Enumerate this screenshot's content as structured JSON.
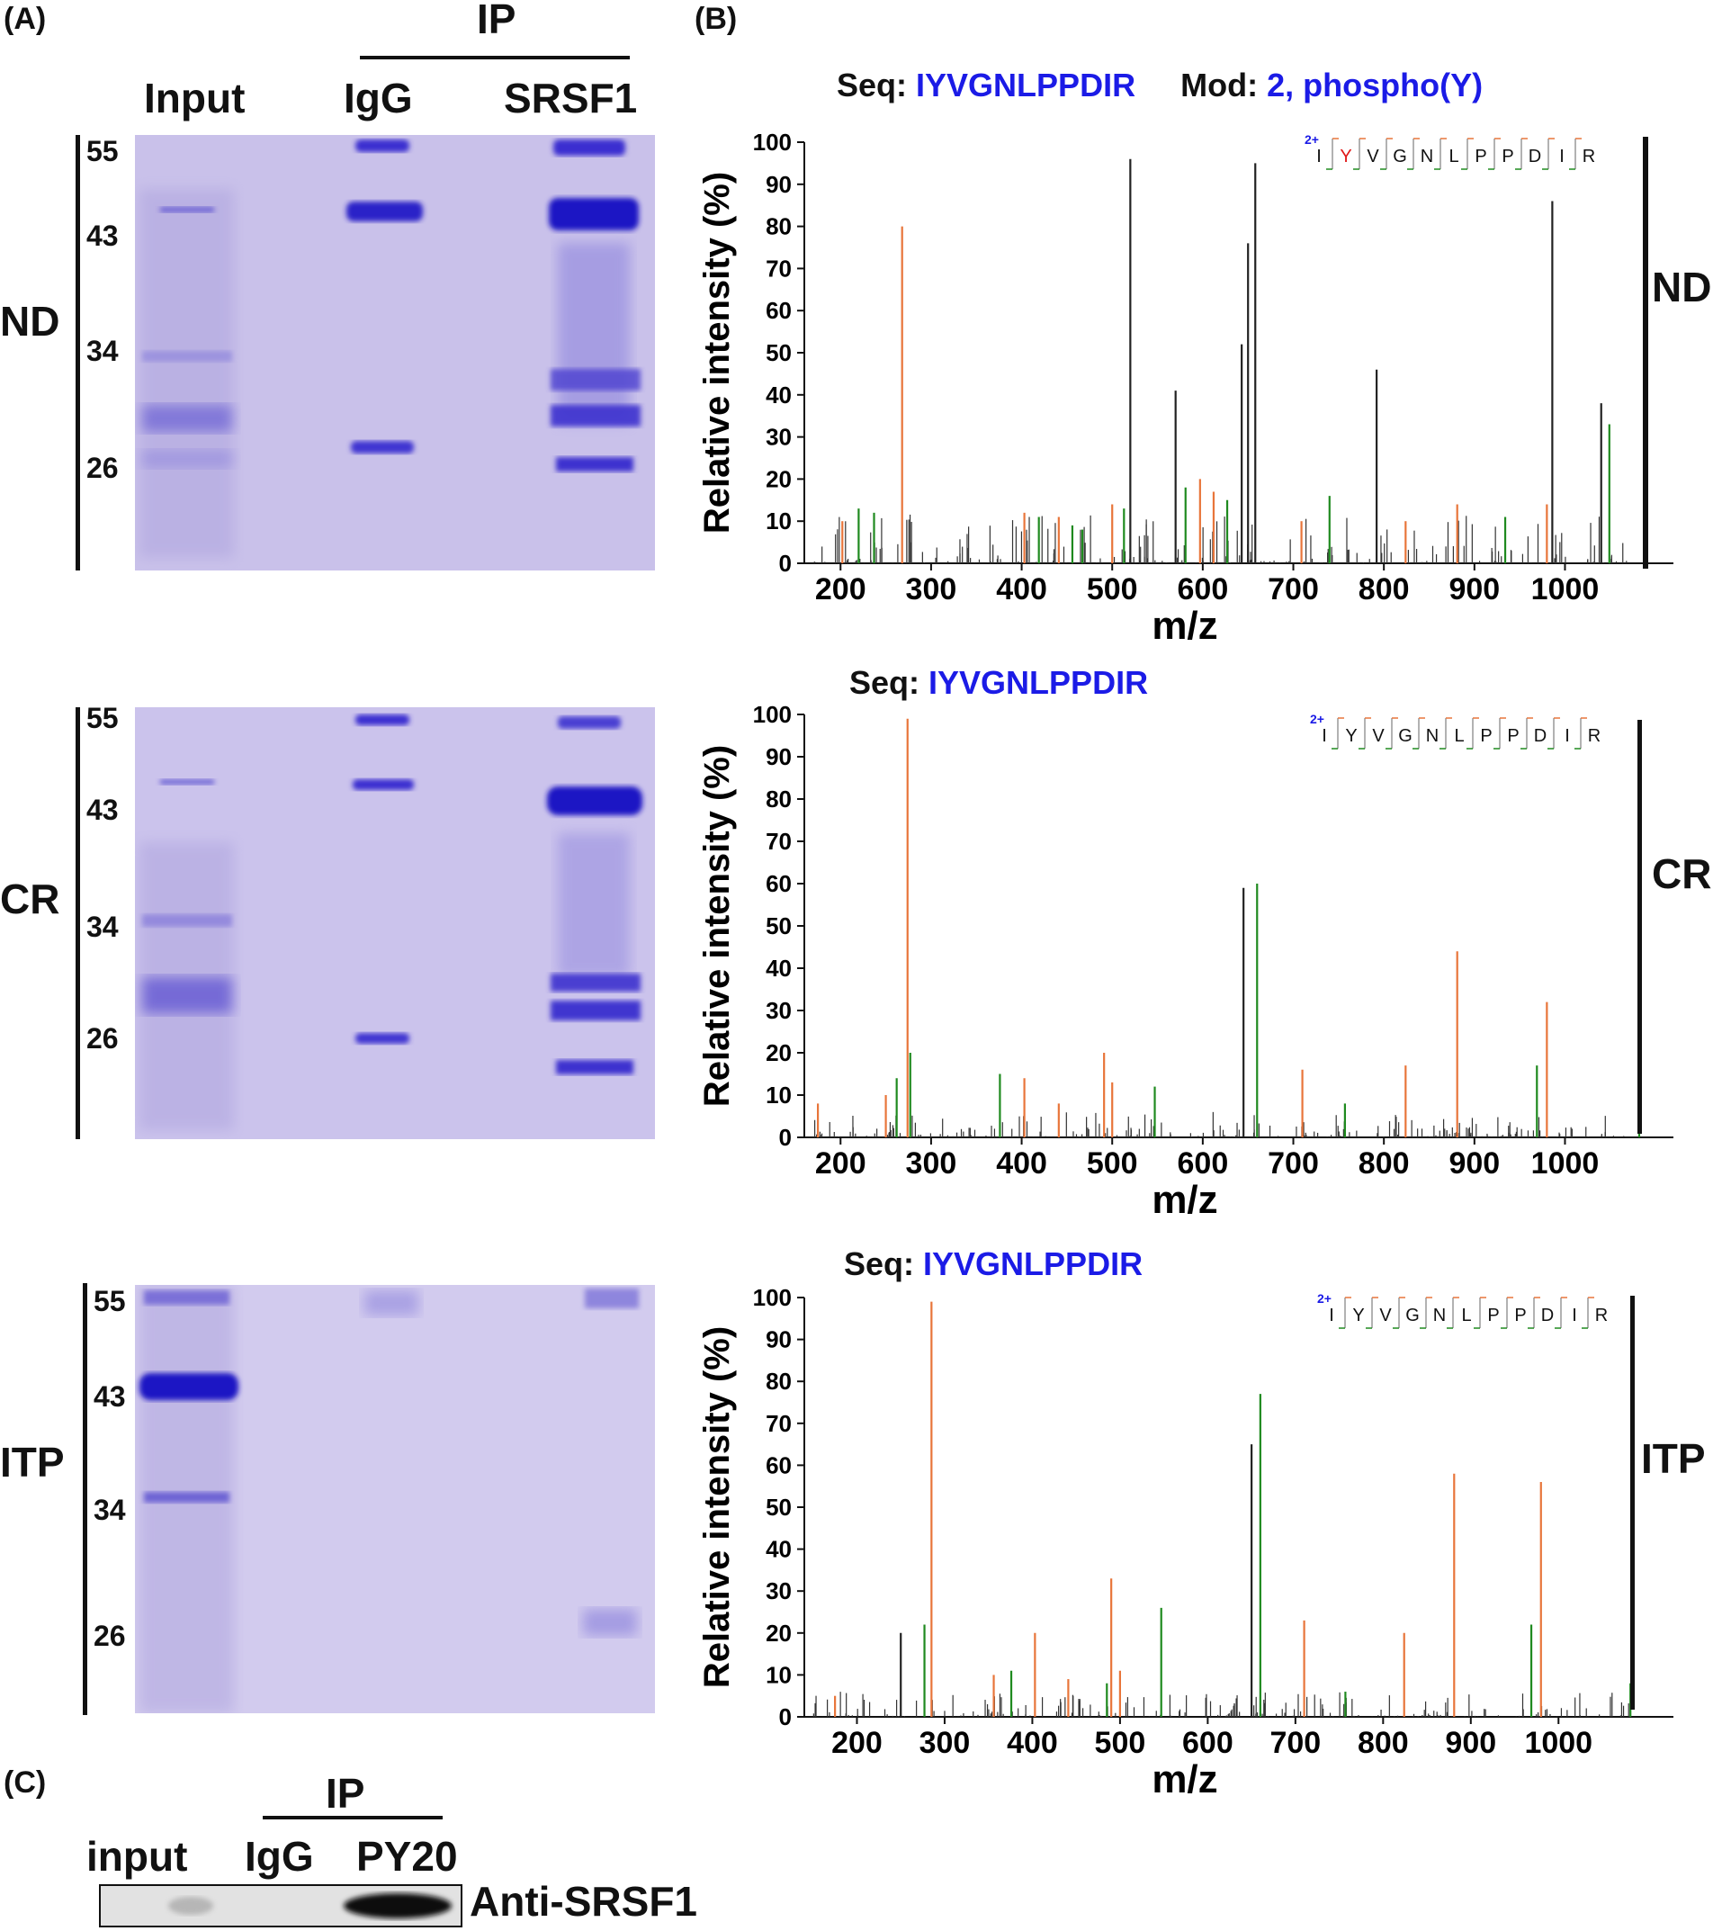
{
  "panels": {
    "A": "(A)",
    "B": "(B)",
    "C": "(C)"
  },
  "gel": {
    "ip_label": "IP",
    "lanes": [
      "Input",
      "IgG",
      "SRSF1"
    ],
    "markers": [
      "55",
      "43",
      "34",
      "26"
    ],
    "conditions": [
      "ND",
      "CR",
      "ITP"
    ]
  },
  "spectra": [
    {
      "condition": "ND",
      "seq_label": "Seq:",
      "seq_value": "IYVGNLPPDIR",
      "mod_label": "Mod:",
      "mod_value": "2, phospho(Y)",
      "ylabel": "Relative intensity (%)",
      "xlabel": "m/z",
      "yticks": [
        "0",
        "10",
        "20",
        "30",
        "40",
        "50",
        "60",
        "70",
        "80",
        "90",
        "100"
      ],
      "xticks": [
        "200",
        "300",
        "400",
        "500",
        "600",
        "700",
        "800",
        "900",
        "1000"
      ],
      "diagram": {
        "charge": "2+",
        "residues": [
          "I",
          "Y",
          "V",
          "G",
          "N",
          "L",
          "P",
          "P",
          "D",
          "I",
          "R"
        ]
      }
    },
    {
      "condition": "CR",
      "seq_label": "Seq:",
      "seq_value": "IYVGNLPPDIR",
      "ylabel": "Relative intensity (%)",
      "xlabel": "m/z",
      "yticks": [
        "0",
        "10",
        "20",
        "30",
        "40",
        "50",
        "60",
        "70",
        "80",
        "90",
        "100"
      ],
      "xticks": [
        "200",
        "300",
        "400",
        "500",
        "600",
        "700",
        "800",
        "900",
        "1000"
      ],
      "diagram": {
        "charge": "2+",
        "residues": [
          "I",
          "Y",
          "V",
          "G",
          "N",
          "L",
          "P",
          "P",
          "D",
          "I",
          "R"
        ]
      }
    },
    {
      "condition": "ITP",
      "seq_label": "Seq:",
      "seq_value": "IYVGNLPPDIR",
      "ylabel": "Relative intensity (%)",
      "xlabel": "m/z",
      "yticks": [
        "0",
        "10",
        "20",
        "30",
        "40",
        "50",
        "60",
        "70",
        "80",
        "90",
        "100"
      ],
      "xticks": [
        "200",
        "300",
        "400",
        "500",
        "600",
        "700",
        "800",
        "900",
        "1000"
      ],
      "diagram": {
        "charge": "2+",
        "residues": [
          "I",
          "Y",
          "V",
          "G",
          "N",
          "L",
          "P",
          "P",
          "D",
          "I",
          "R"
        ]
      }
    }
  ],
  "blot": {
    "ip_label": "IP",
    "lanes": [
      "input",
      "IgG",
      "PY20"
    ],
    "antibody": "Anti-SRSF1"
  },
  "colors": {
    "y_ion": "#e8753a",
    "b_ion": "#1f8a1f",
    "seq": "#1b1be6",
    "gel": "#c9c1ea",
    "band": "#3a2fd0"
  },
  "chart_data": [
    {
      "type": "bar",
      "title": "Seq: IYVGNLPPDIR Mod: 2, phospho(Y)",
      "xlabel": "m/z",
      "ylabel": "Relative intensity (%)",
      "xlim": [
        160,
        1080
      ],
      "ylim": [
        0,
        100
      ],
      "peaks": [
        {
          "x": 202,
          "y": 10,
          "ion": "y"
        },
        {
          "x": 220,
          "y": 13,
          "ion": "b"
        },
        {
          "x": 237,
          "y": 12,
          "ion": "b"
        },
        {
          "x": 268,
          "y": 80,
          "ion": "y"
        },
        {
          "x": 403,
          "y": 12,
          "ion": "y"
        },
        {
          "x": 419,
          "y": 11,
          "ion": "b"
        },
        {
          "x": 441,
          "y": 11,
          "ion": "y"
        },
        {
          "x": 456,
          "y": 9,
          "ion": "b"
        },
        {
          "x": 467,
          "y": 8,
          "ion": "b"
        },
        {
          "x": 500,
          "y": 14,
          "ion": "y"
        },
        {
          "x": 513,
          "y": 13,
          "ion": "b"
        },
        {
          "x": 520,
          "y": 96,
          "ion": "n"
        },
        {
          "x": 570,
          "y": 41,
          "ion": "n"
        },
        {
          "x": 581,
          "y": 18,
          "ion": "b"
        },
        {
          "x": 597,
          "y": 20,
          "ion": "y"
        },
        {
          "x": 612,
          "y": 17,
          "ion": "y"
        },
        {
          "x": 627,
          "y": 15,
          "ion": "b"
        },
        {
          "x": 643,
          "y": 52,
          "ion": "n"
        },
        {
          "x": 650,
          "y": 76,
          "ion": "n"
        },
        {
          "x": 658,
          "y": 95,
          "ion": "n"
        },
        {
          "x": 709,
          "y": 10,
          "ion": "y"
        },
        {
          "x": 740,
          "y": 16,
          "ion": "b"
        },
        {
          "x": 792,
          "y": 46,
          "ion": "n"
        },
        {
          "x": 824,
          "y": 10,
          "ion": "y"
        },
        {
          "x": 881,
          "y": 14,
          "ion": "y"
        },
        {
          "x": 934,
          "y": 11,
          "ion": "b"
        },
        {
          "x": 980,
          "y": 14,
          "ion": "y"
        },
        {
          "x": 986,
          "y": 86,
          "ion": "n"
        },
        {
          "x": 1049,
          "y": 33,
          "ion": "b"
        },
        {
          "x": 1040,
          "y": 38,
          "ion": "n"
        }
      ]
    },
    {
      "type": "bar",
      "title": "Seq: IYVGNLPPDIR",
      "xlabel": "m/z",
      "ylabel": "Relative intensity (%)",
      "xlim": [
        160,
        1080
      ],
      "ylim": [
        0,
        100
      ],
      "peaks": [
        {
          "x": 175,
          "y": 8,
          "ion": "y"
        },
        {
          "x": 250,
          "y": 10,
          "ion": "y"
        },
        {
          "x": 262,
          "y": 14,
          "ion": "b"
        },
        {
          "x": 274,
          "y": 99,
          "ion": "y"
        },
        {
          "x": 277,
          "y": 20,
          "ion": "b"
        },
        {
          "x": 376,
          "y": 15,
          "ion": "b"
        },
        {
          "x": 403,
          "y": 14,
          "ion": "y"
        },
        {
          "x": 441,
          "y": 8,
          "ion": "y"
        },
        {
          "x": 491,
          "y": 20,
          "ion": "y"
        },
        {
          "x": 500,
          "y": 13,
          "ion": "y"
        },
        {
          "x": 547,
          "y": 12,
          "ion": "b"
        },
        {
          "x": 645,
          "y": 59,
          "ion": "n"
        },
        {
          "x": 660,
          "y": 60,
          "ion": "b"
        },
        {
          "x": 710,
          "y": 16,
          "ion": "y"
        },
        {
          "x": 757,
          "y": 8,
          "ion": "b"
        },
        {
          "x": 824,
          "y": 17,
          "ion": "y"
        },
        {
          "x": 881,
          "y": 44,
          "ion": "y"
        },
        {
          "x": 969,
          "y": 17,
          "ion": "b"
        },
        {
          "x": 980,
          "y": 32,
          "ion": "y"
        },
        {
          "x": 1082,
          "y": 3,
          "ion": "b"
        }
      ]
    },
    {
      "type": "bar",
      "title": "Seq: IYVGNLPPDIR",
      "xlabel": "m/z",
      "ylabel": "Relative intensity (%)",
      "xlim": [
        140,
        1090
      ],
      "ylim": [
        0,
        100
      ],
      "peaks": [
        {
          "x": 175,
          "y": 5,
          "ion": "y"
        },
        {
          "x": 250,
          "y": 20,
          "ion": "n"
        },
        {
          "x": 277,
          "y": 22,
          "ion": "b"
        },
        {
          "x": 285,
          "y": 99,
          "ion": "y"
        },
        {
          "x": 356,
          "y": 10,
          "ion": "y"
        },
        {
          "x": 376,
          "y": 11,
          "ion": "b"
        },
        {
          "x": 403,
          "y": 20,
          "ion": "y"
        },
        {
          "x": 441,
          "y": 9,
          "ion": "y"
        },
        {
          "x": 485,
          "y": 8,
          "ion": "b"
        },
        {
          "x": 490,
          "y": 33,
          "ion": "y"
        },
        {
          "x": 500,
          "y": 11,
          "ion": "y"
        },
        {
          "x": 547,
          "y": 26,
          "ion": "b"
        },
        {
          "x": 650,
          "y": 65,
          "ion": "n"
        },
        {
          "x": 660,
          "y": 77,
          "ion": "b"
        },
        {
          "x": 710,
          "y": 23,
          "ion": "y"
        },
        {
          "x": 757,
          "y": 6,
          "ion": "b"
        },
        {
          "x": 824,
          "y": 20,
          "ion": "y"
        },
        {
          "x": 881,
          "y": 58,
          "ion": "y"
        },
        {
          "x": 969,
          "y": 22,
          "ion": "b"
        },
        {
          "x": 980,
          "y": 56,
          "ion": "y"
        },
        {
          "x": 1082,
          "y": 8,
          "ion": "b"
        }
      ]
    }
  ]
}
